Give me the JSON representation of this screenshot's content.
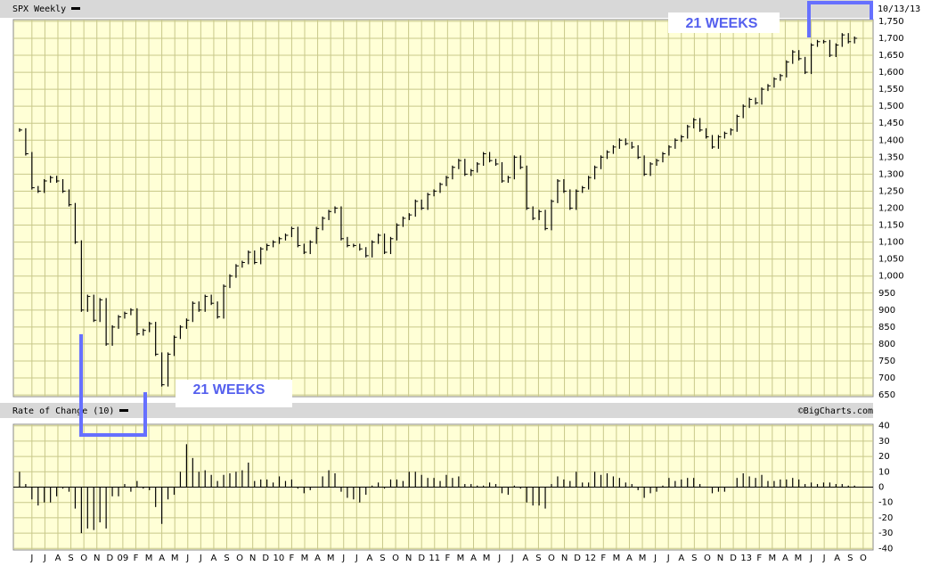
{
  "chart_data": [
    {
      "type": "price-bars",
      "title": "SPX Weekly",
      "date": "10/13/13",
      "color": "#000000",
      "annotations": [
        "21 WEEKS",
        "21 WEEKS"
      ],
      "x": [
        0,
        1,
        2,
        3,
        4,
        5,
        6,
        7,
        8,
        9,
        10,
        11,
        12,
        13,
        14,
        15,
        16,
        17,
        18,
        19,
        20,
        21,
        22,
        23,
        24,
        25,
        26,
        27,
        28,
        29,
        30,
        31,
        32,
        33,
        34,
        35,
        36,
        37,
        38,
        39,
        40,
        41,
        42,
        43,
        44,
        45,
        46,
        47,
        48,
        49,
        50,
        51,
        52,
        53,
        54,
        55,
        56,
        57,
        58,
        59,
        60,
        61,
        62,
        63,
        64,
        65,
        66,
        67,
        68,
        69,
        70,
        71,
        72,
        73,
        74,
        75,
        76,
        77,
        78,
        79,
        80,
        81,
        82,
        83,
        84,
        85,
        86,
        87,
        88,
        89,
        90,
        91,
        92,
        93,
        94,
        95,
        96,
        97,
        98,
        99,
        100,
        101,
        102,
        103,
        104,
        105,
        106,
        107,
        108,
        109,
        110,
        111,
        112,
        113,
        114,
        115,
        116,
        117,
        118,
        119,
        120,
        121,
        122,
        123,
        124,
        125,
        126,
        127,
        128,
        129,
        130,
        131,
        132,
        133,
        134,
        135
      ],
      "values": [
        1430,
        1360,
        1260,
        1250,
        1280,
        1290,
        1280,
        1250,
        1210,
        1100,
        900,
        940,
        870,
        930,
        800,
        850,
        880,
        890,
        900,
        830,
        840,
        860,
        770,
        680,
        770,
        820,
        850,
        870,
        920,
        900,
        940,
        920,
        880,
        970,
        1000,
        1030,
        1040,
        1070,
        1040,
        1080,
        1090,
        1100,
        1110,
        1120,
        1140,
        1090,
        1070,
        1100,
        1140,
        1170,
        1190,
        1200,
        1110,
        1090,
        1090,
        1080,
        1060,
        1100,
        1120,
        1070,
        1110,
        1150,
        1170,
        1180,
        1220,
        1200,
        1240,
        1250,
        1270,
        1290,
        1320,
        1340,
        1300,
        1310,
        1330,
        1360,
        1340,
        1330,
        1280,
        1290,
        1350,
        1320,
        1200,
        1170,
        1190,
        1140,
        1220,
        1280,
        1250,
        1200,
        1250,
        1260,
        1290,
        1320,
        1350,
        1365,
        1380,
        1400,
        1390,
        1380,
        1350,
        1300,
        1330,
        1340,
        1360,
        1380,
        1400,
        1410,
        1440,
        1460,
        1430,
        1410,
        1380,
        1410,
        1420,
        1430,
        1470,
        1500,
        1520,
        1510,
        1550,
        1560,
        1580,
        1590,
        1630,
        1660,
        1640,
        1600,
        1680,
        1690,
        1690,
        1650,
        1680,
        1710,
        1690,
        1700
      ],
      "xlim": [
        -1,
        138
      ],
      "ylim": [
        645,
        1755
      ],
      "yticks": [
        650,
        700,
        750,
        800,
        850,
        900,
        950,
        {
          "value": 1000,
          "label": "1,000"
        },
        {
          "value": 1050,
          "label": "1,050"
        },
        {
          "value": 1100,
          "label": "1,100"
        },
        {
          "value": 1150,
          "label": "1,150"
        },
        {
          "value": 1200,
          "label": "1,200"
        },
        {
          "value": 1250,
          "label": "1,250"
        },
        {
          "value": 1300,
          "label": "1,300"
        },
        {
          "value": 1350,
          "label": "1,350"
        },
        {
          "value": 1400,
          "label": "1,400"
        },
        {
          "value": 1450,
          "label": "1,450"
        },
        {
          "value": 1500,
          "label": "1,500"
        },
        {
          "value": 1550,
          "label": "1,550"
        },
        {
          "value": 1600,
          "label": "1,600"
        },
        {
          "value": 1650,
          "label": "1,650"
        },
        {
          "value": 1700,
          "label": "1,700"
        },
        {
          "value": 1750,
          "label": "1,750"
        }
      ],
      "grid": true
    },
    {
      "type": "roc-bars",
      "title": "Rate of Change (10)",
      "credit": "©BigCharts.com",
      "color": "#000000",
      "x": [
        0,
        1,
        2,
        3,
        4,
        5,
        6,
        7,
        8,
        9,
        10,
        11,
        12,
        13,
        14,
        15,
        16,
        17,
        18,
        19,
        20,
        21,
        22,
        23,
        24,
        25,
        26,
        27,
        28,
        29,
        30,
        31,
        32,
        33,
        34,
        35,
        36,
        37,
        38,
        39,
        40,
        41,
        42,
        43,
        44,
        45,
        46,
        47,
        48,
        49,
        50,
        51,
        52,
        53,
        54,
        55,
        56,
        57,
        58,
        59,
        60,
        61,
        62,
        63,
        64,
        65,
        66,
        67,
        68,
        69,
        70,
        71,
        72,
        73,
        74,
        75,
        76,
        77,
        78,
        79,
        80,
        81,
        82,
        83,
        84,
        85,
        86,
        87,
        88,
        89,
        90,
        91,
        92,
        93,
        94,
        95,
        96,
        97,
        98,
        99,
        100,
        101,
        102,
        103,
        104,
        105,
        106,
        107,
        108,
        109,
        110,
        111,
        112,
        113,
        114,
        115,
        116,
        117,
        118,
        119,
        120,
        121,
        122,
        123,
        124,
        125,
        126,
        127,
        128,
        129,
        130,
        131,
        132,
        133,
        134,
        135
      ],
      "values": [
        10,
        2,
        -8,
        -12,
        -10,
        -10,
        -6,
        -1,
        -3,
        -14,
        -30,
        -27,
        -28,
        -23,
        -27,
        -6,
        -6,
        2,
        -3,
        4,
        -1,
        -2,
        -13,
        -24,
        -8,
        -5,
        10,
        28,
        19,
        10,
        11,
        8,
        4,
        8,
        9,
        10,
        11,
        16,
        4,
        5,
        5,
        3,
        7,
        4,
        5,
        -1,
        -4,
        -2,
        0,
        7,
        11,
        9,
        -3,
        -7,
        -8,
        -10,
        -5,
        1,
        3,
        -1,
        5,
        5,
        4,
        10,
        10,
        8,
        6,
        6,
        4,
        8,
        6,
        7,
        2,
        2,
        1,
        1,
        3,
        2,
        -4,
        -5,
        1,
        -1,
        -10,
        -12,
        -12,
        -14,
        2,
        7,
        5,
        4,
        10,
        3,
        3,
        10,
        8,
        9,
        7,
        6,
        3,
        2,
        -2,
        -7,
        -4,
        -3,
        1,
        6,
        4,
        5,
        6,
        6,
        2,
        0,
        -4,
        -3,
        -3,
        0,
        6,
        9,
        7,
        6,
        8,
        4,
        4,
        5,
        5,
        6,
        5,
        2,
        3,
        2,
        3,
        3,
        2,
        2,
        1,
        1
      ],
      "xlim": [
        -1,
        138
      ],
      "ylim": [
        -41,
        41
      ],
      "yticks": [
        -40,
        -30,
        -20,
        -10,
        0,
        10,
        20,
        30,
        40
      ],
      "xticks": [
        {
          "value": 2,
          "label": "J"
        },
        {
          "value": 4.1,
          "label": "J"
        },
        {
          "value": 6.2,
          "label": "A"
        },
        {
          "value": 8.3,
          "label": "S"
        },
        {
          "value": 10.4,
          "label": "O"
        },
        {
          "value": 12.5,
          "label": "N"
        },
        {
          "value": 14.6,
          "label": "D"
        },
        {
          "value": 16.7,
          "label": "09"
        },
        {
          "value": 18.8,
          "label": "F"
        },
        {
          "value": 20.9,
          "label": "M"
        },
        {
          "value": 23,
          "label": "A"
        },
        {
          "value": 25.1,
          "label": "M"
        },
        {
          "value": 27.2,
          "label": "J"
        },
        {
          "value": 29.3,
          "label": "J"
        },
        {
          "value": 31.4,
          "label": "A"
        },
        {
          "value": 33.5,
          "label": "S"
        },
        {
          "value": 35.6,
          "label": "O"
        },
        {
          "value": 37.7,
          "label": "N"
        },
        {
          "value": 39.8,
          "label": "D"
        },
        {
          "value": 41.9,
          "label": "10"
        },
        {
          "value": 44,
          "label": "F"
        },
        {
          "value": 46.1,
          "label": "M"
        },
        {
          "value": 48.2,
          "label": "A"
        },
        {
          "value": 50.3,
          "label": "M"
        },
        {
          "value": 52.4,
          "label": "J"
        },
        {
          "value": 54.5,
          "label": "J"
        },
        {
          "value": 56.6,
          "label": "A"
        },
        {
          "value": 58.7,
          "label": "S"
        },
        {
          "value": 60.8,
          "label": "O"
        },
        {
          "value": 62.9,
          "label": "N"
        },
        {
          "value": 65,
          "label": "D"
        },
        {
          "value": 67.1,
          "label": "11"
        },
        {
          "value": 69.2,
          "label": "F"
        },
        {
          "value": 71.3,
          "label": "M"
        },
        {
          "value": 73.4,
          "label": "A"
        },
        {
          "value": 75.5,
          "label": "M"
        },
        {
          "value": 77.6,
          "label": "J"
        },
        {
          "value": 79.7,
          "label": "J"
        },
        {
          "value": 81.8,
          "label": "A"
        },
        {
          "value": 83.9,
          "label": "S"
        },
        {
          "value": 86,
          "label": "O"
        },
        {
          "value": 88.1,
          "label": "N"
        },
        {
          "value": 90.2,
          "label": "D"
        },
        {
          "value": 92.3,
          "label": "12"
        },
        {
          "value": 94.4,
          "label": "F"
        },
        {
          "value": 96.5,
          "label": "M"
        },
        {
          "value": 98.6,
          "label": "A"
        },
        {
          "value": 100.7,
          "label": "M"
        },
        {
          "value": 102.8,
          "label": "J"
        },
        {
          "value": 104.9,
          "label": "J"
        },
        {
          "value": 107,
          "label": "A"
        },
        {
          "value": 109.1,
          "label": "S"
        },
        {
          "value": 111.2,
          "label": "O"
        },
        {
          "value": 113.3,
          "label": "N"
        },
        {
          "value": 115.4,
          "label": "D"
        },
        {
          "value": 117.5,
          "label": "13"
        },
        {
          "value": 119.6,
          "label": "F"
        },
        {
          "value": 121.7,
          "label": "M"
        },
        {
          "value": 123.8,
          "label": "A"
        },
        {
          "value": 125.9,
          "label": "M"
        },
        {
          "value": 128,
          "label": "J"
        },
        {
          "value": 130.1,
          "label": "J"
        },
        {
          "value": 132.2,
          "label": "A"
        },
        {
          "value": 134.3,
          "label": "S"
        },
        {
          "value": 136.4,
          "label": "O"
        }
      ],
      "grid": true
    }
  ]
}
